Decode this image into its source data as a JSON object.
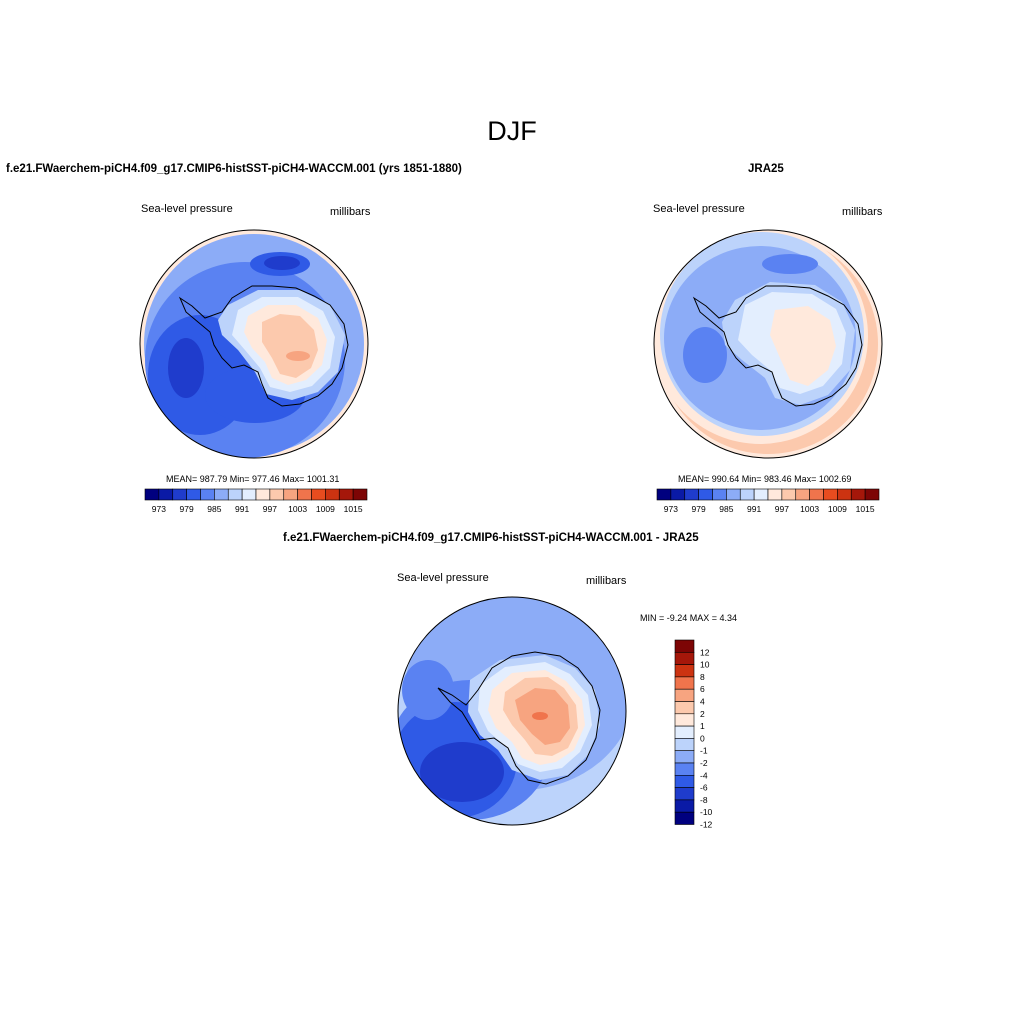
{
  "main_title": "DJF",
  "panels": [
    {
      "title": "f.e21.FWaerchem-piCH4.f09_g17.CMIP6-histSST-piCH4-WACCM.001 (yrs 1851-1880)",
      "left_label": "Sea-level pressure",
      "right_label": "millibars",
      "stats": "MEAN= 987.79  Min= 977.46  Max= 1001.31",
      "colorbar_labels": [
        "973",
        "979",
        "985",
        "991",
        "997",
        "1003",
        "1009",
        "1015"
      ]
    },
    {
      "title": "JRA25",
      "left_label": "Sea-level pressure",
      "right_label": "millibars",
      "stats": "MEAN= 990.64  Min= 983.46  Max= 1002.69",
      "colorbar_labels": [
        "973",
        "979",
        "985",
        "991",
        "997",
        "1003",
        "1009",
        "1015"
      ]
    },
    {
      "title": "f.e21.FWaerchem-piCH4.f09_g17.CMIP6-histSST-piCH4-WACCM.001 - JRA25",
      "left_label": "Sea-level pressure",
      "right_label": "millibars",
      "stats": "MIN =  -9.24 MAX =   4.34",
      "colorbar_labels": [
        "12",
        "10",
        "8",
        "6",
        "4",
        "2",
        "1",
        "0",
        "-1",
        "-2",
        "-4",
        "-6",
        "-8",
        "-10",
        "-12"
      ]
    }
  ],
  "colors": {
    "abs_scale": [
      "#00007f",
      "#0a1aa6",
      "#1f3ccc",
      "#2f5ae6",
      "#5a82f2",
      "#8cacf7",
      "#bcd3fb",
      "#e3eefe",
      "#ffe9dc",
      "#fcc9ad",
      "#f7a480",
      "#f0744c",
      "#e84c1f",
      "#cc3311",
      "#a5170a",
      "#7d0505"
    ],
    "diff_scale": [
      "#7d0505",
      "#a5170a",
      "#cc3311",
      "#f0744c",
      "#f7a480",
      "#fcc9ad",
      "#ffe9dc",
      "#e3eefe",
      "#bcd3fb",
      "#8cacf7",
      "#5a82f2",
      "#2f5ae6",
      "#1f3ccc",
      "#0a1aa6",
      "#00007f"
    ]
  }
}
